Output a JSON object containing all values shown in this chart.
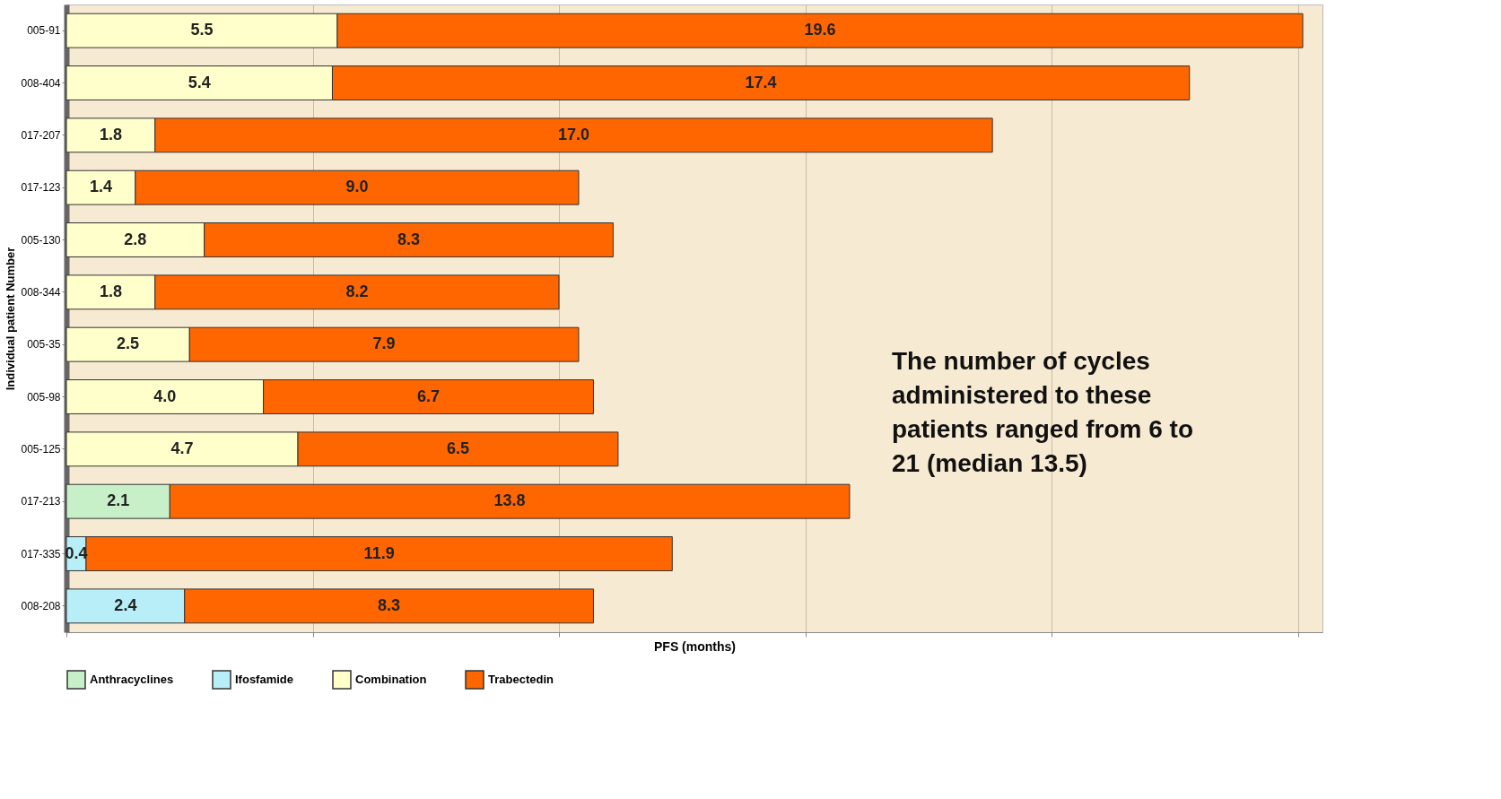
{
  "chart_data": {
    "type": "bar",
    "orientation": "horizontal",
    "stacked": true,
    "xlabel": "PFS (months)",
    "ylabel": "Individual patient Number",
    "categories": [
      "005-91",
      "008-404",
      "017-207",
      "017-123",
      "005-130",
      "008-344",
      "005-35",
      "005-98",
      "005-125",
      "017-213",
      "017-335",
      "008-208"
    ],
    "series": [
      {
        "name": "Anthracyclines",
        "color": "#c8f0c8",
        "values": [
          null,
          null,
          null,
          null,
          null,
          null,
          null,
          null,
          null,
          2.1,
          null,
          null
        ],
        "value_labels": [
          null,
          null,
          null,
          null,
          null,
          null,
          null,
          null,
          null,
          "2.1",
          null,
          null
        ]
      },
      {
        "name": "Ifosfamide",
        "color": "#b8eef8",
        "values": [
          null,
          null,
          null,
          null,
          null,
          null,
          null,
          null,
          null,
          null,
          0.4,
          2.4
        ],
        "value_labels": [
          null,
          null,
          null,
          null,
          null,
          null,
          null,
          null,
          null,
          null,
          "0.4",
          "2.4"
        ]
      },
      {
        "name": "Combination",
        "color": "#ffffcc",
        "values": [
          5.5,
          5.4,
          1.8,
          1.4,
          2.8,
          1.8,
          2.5,
          4.0,
          4.7,
          null,
          null,
          null
        ],
        "value_labels": [
          "5.5",
          "5.4",
          "1.8",
          "1.4",
          "2.8",
          "1.8",
          "2.5",
          "4.0",
          "4.7",
          null,
          null,
          null
        ]
      },
      {
        "name": "Trabectedin",
        "color": "#ff6600",
        "values": [
          19.6,
          17.4,
          17.0,
          9.0,
          8.3,
          8.2,
          7.9,
          6.7,
          6.5,
          13.8,
          11.9,
          8.3
        ],
        "value_labels": [
          "19.6",
          "17.4",
          "17.0",
          "9.0",
          "8.3",
          "8.2",
          "7.9",
          "6.7",
          "6.5",
          "13.8",
          "11.9",
          "8.3"
        ]
      }
    ],
    "xlim": [
      0,
      25.5
    ],
    "xticks": [
      {
        "value": 0,
        "label": null
      },
      {
        "value": 5,
        "label": null
      },
      {
        "value": 10,
        "label": null
      },
      {
        "value": 15,
        "label": null
      },
      {
        "value": 20,
        "label": null
      },
      {
        "value": 25,
        "label": null
      }
    ],
    "tick_labels": "y",
    "grid": "x",
    "legend": "bottom",
    "annotations": [
      "The number of cycles administered to these patients ranged from 6 to 21 (median 13.5)"
    ]
  }
}
